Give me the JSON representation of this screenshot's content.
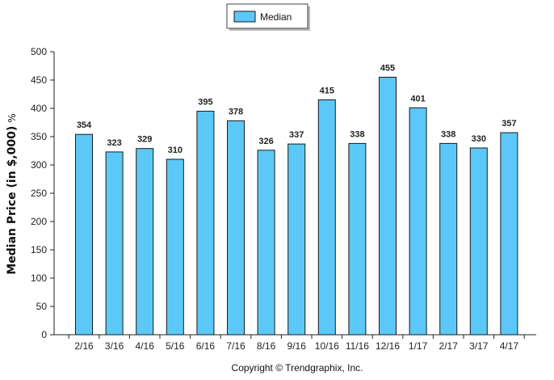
{
  "chart_data": {
    "type": "bar",
    "categories": [
      "2/16",
      "3/16",
      "4/16",
      "5/16",
      "6/16",
      "7/16",
      "8/16",
      "9/16",
      "10/16",
      "11/16",
      "12/16",
      "1/17",
      "2/17",
      "3/17",
      "4/17"
    ],
    "series": [
      {
        "name": "Median",
        "values": [
          354,
          323,
          329,
          310,
          395,
          378,
          326,
          337,
          415,
          338,
          455,
          401,
          338,
          330,
          357
        ]
      }
    ],
    "ylabel": "Median Price (in $,000)",
    "ylabel_unit": "%",
    "ylim": [
      0,
      500
    ],
    "yticks": [
      0,
      50,
      100,
      150,
      200,
      250,
      300,
      350,
      400,
      450,
      500
    ],
    "grid": false,
    "legend": "top-center",
    "bar_color": "#5cc8f7",
    "bar_stroke": "#1a1a1a"
  },
  "footer": {
    "copyright": "Copyright © Trendgraphix, Inc."
  }
}
